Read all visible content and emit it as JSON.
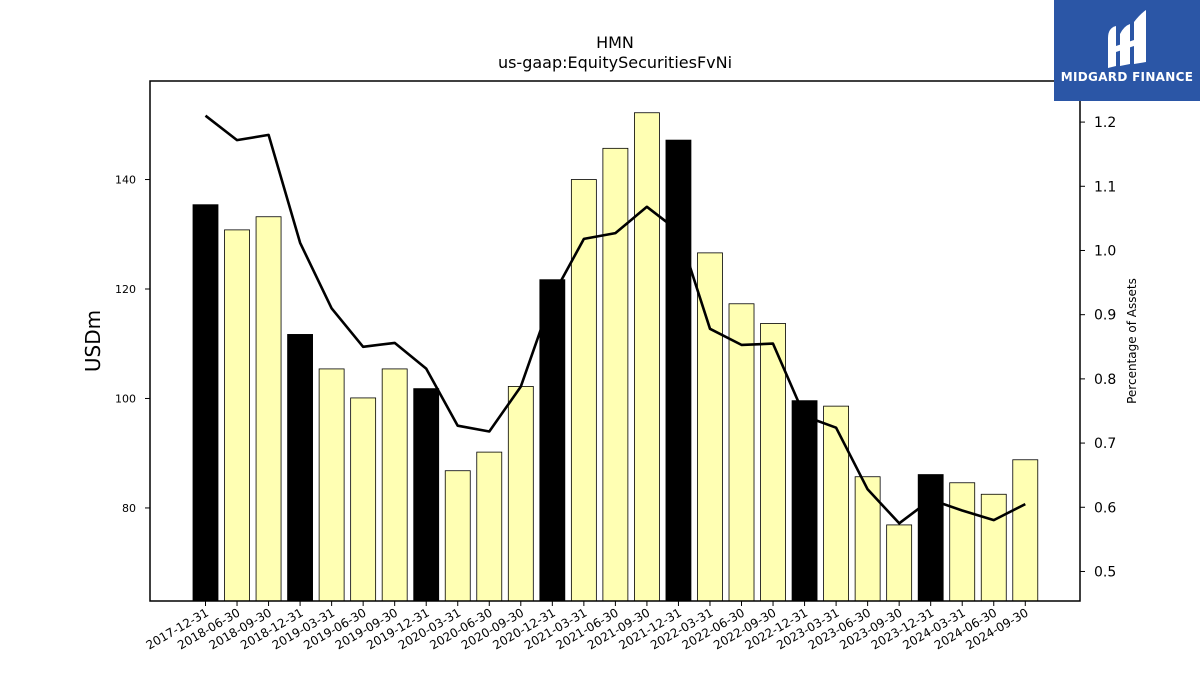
{
  "chart_data": {
    "type": "bar",
    "title": "HMN",
    "subtitle": "us-gaap:EquitySecuritiesFvNi",
    "ylabel": "USDm",
    "y2label": "Percentage of Assets",
    "ylim": [
      63,
      158
    ],
    "y2lim": [
      0.454,
      1.264
    ],
    "yticks": [
      80,
      100,
      120,
      140
    ],
    "y2ticks": [
      0.5,
      0.6,
      0.7,
      0.8,
      0.9,
      1.0,
      1.1,
      1.2
    ],
    "categories": [
      "2017-12-31",
      "2018-06-30",
      "2018-09-30",
      "2018-12-31",
      "2019-03-31",
      "2019-06-30",
      "2019-09-30",
      "2019-12-31",
      "2020-03-31",
      "2020-06-30",
      "2020-09-30",
      "2020-12-31",
      "2021-03-31",
      "2021-06-30",
      "2021-09-30",
      "2021-12-31",
      "2022-03-31",
      "2022-06-30",
      "2022-09-30",
      "2022-12-31",
      "2023-03-31",
      "2023-06-30",
      "2023-09-30",
      "2023-12-31",
      "2024-03-31",
      "2024-06-30",
      "2024-09-30"
    ],
    "series": [
      {
        "type": "bar",
        "values": [
          135.4,
          130.8,
          133.2,
          111.7,
          105.4,
          100.1,
          105.4,
          101.8,
          86.8,
          90.2,
          102.2,
          121.7,
          140.0,
          145.7,
          152.2,
          147.2,
          126.6,
          117.3,
          113.7,
          99.6,
          98.6,
          85.7,
          76.9,
          86.1,
          84.6,
          82.5,
          88.8
        ],
        "highlight": [
          true,
          false,
          false,
          true,
          false,
          false,
          false,
          true,
          false,
          false,
          false,
          true,
          false,
          false,
          false,
          true,
          false,
          false,
          false,
          true,
          false,
          false,
          false,
          true,
          false,
          false,
          false
        ]
      },
      {
        "type": "line",
        "axis": "right",
        "values": [
          1.21,
          1.172,
          1.18,
          1.012,
          0.91,
          0.85,
          0.856,
          0.816,
          0.727,
          0.718,
          0.788,
          0.928,
          1.018,
          1.027,
          1.068,
          1.03,
          0.878,
          0.853,
          0.855,
          0.742,
          0.724,
          0.628,
          0.575,
          0.612,
          0.595,
          0.58,
          0.605
        ]
      }
    ],
    "colors": {
      "bar_highlight": "#000000",
      "bar_normal": "#ffffb3",
      "bar_edge": "#000000",
      "line": "#000000"
    },
    "grid": false
  },
  "logo": {
    "text": "MIDGARD FINANCE",
    "bg_color": "#2b56a6"
  }
}
